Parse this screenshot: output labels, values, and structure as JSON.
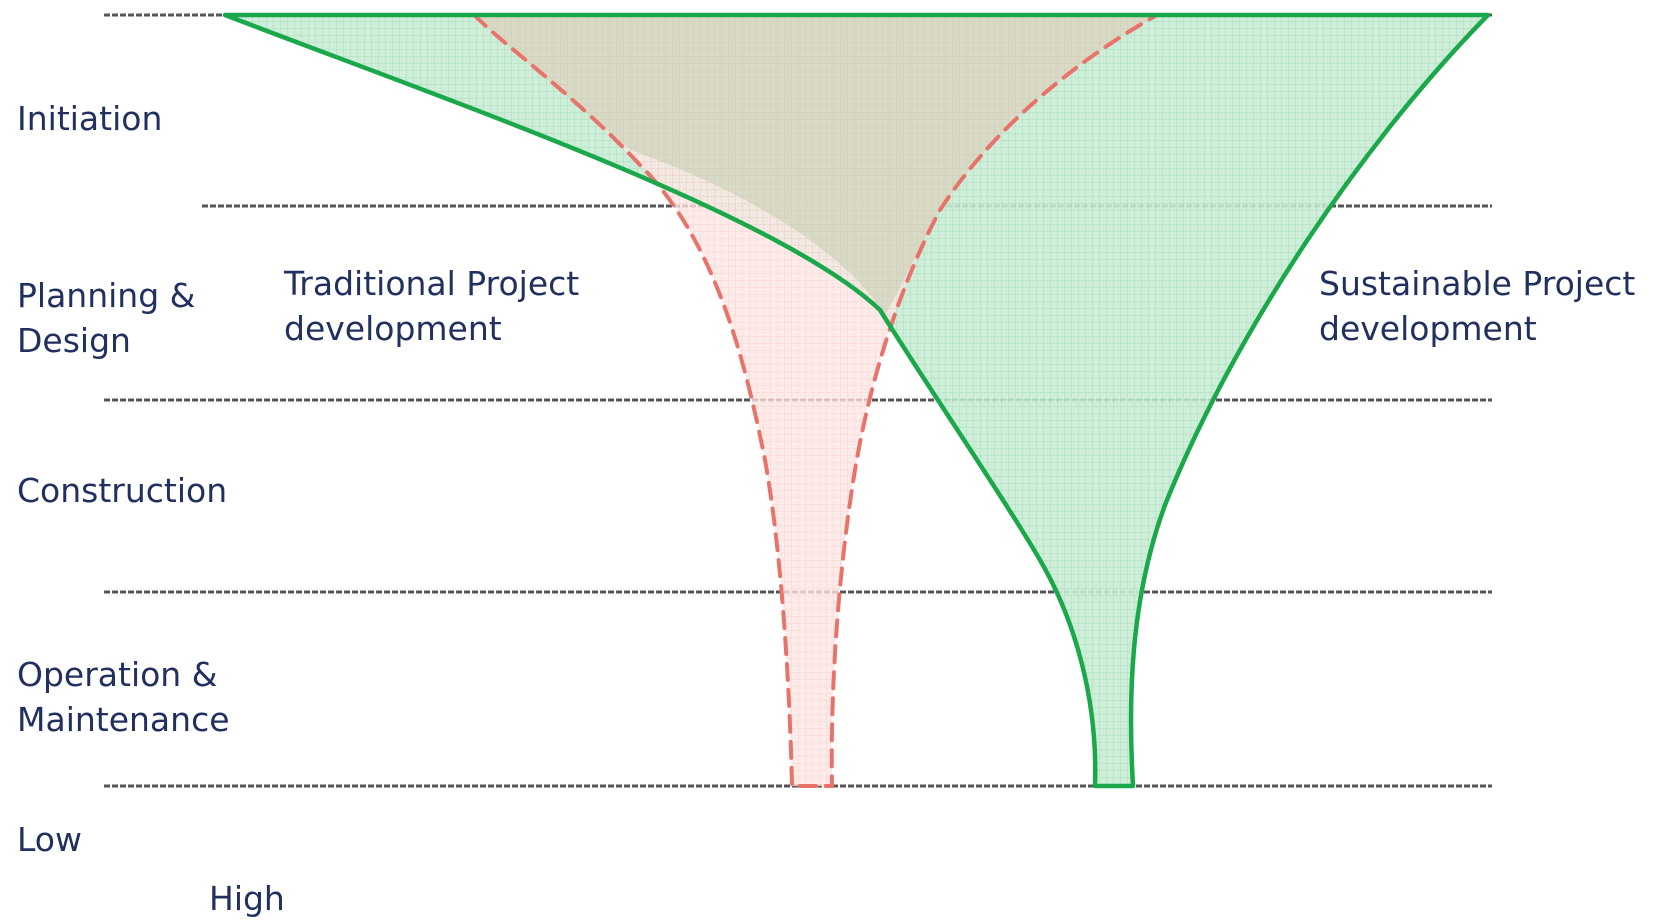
{
  "stages": [
    {
      "id": "initiation",
      "label": "Initiation"
    },
    {
      "id": "planning",
      "label": "Planning &\nDesign"
    },
    {
      "id": "construction",
      "label": "Construction"
    },
    {
      "id": "operation",
      "label": "Operation &\nMaintenance"
    }
  ],
  "scale": {
    "low_label": "Low",
    "high_label": "High"
  },
  "series": [
    {
      "id": "traditional",
      "label": "Traditional Project\ndevelopment",
      "line_style": "dashed",
      "color": "#e8736b",
      "fill": "#fbe3e1"
    },
    {
      "id": "sustainable",
      "label": "Sustainable Project\ndevelopment",
      "line_style": "solid",
      "color": "#1aa84a",
      "fill": "#c7ecd3"
    }
  ],
  "colors": {
    "text": "#22305f",
    "divider": "#555555"
  }
}
